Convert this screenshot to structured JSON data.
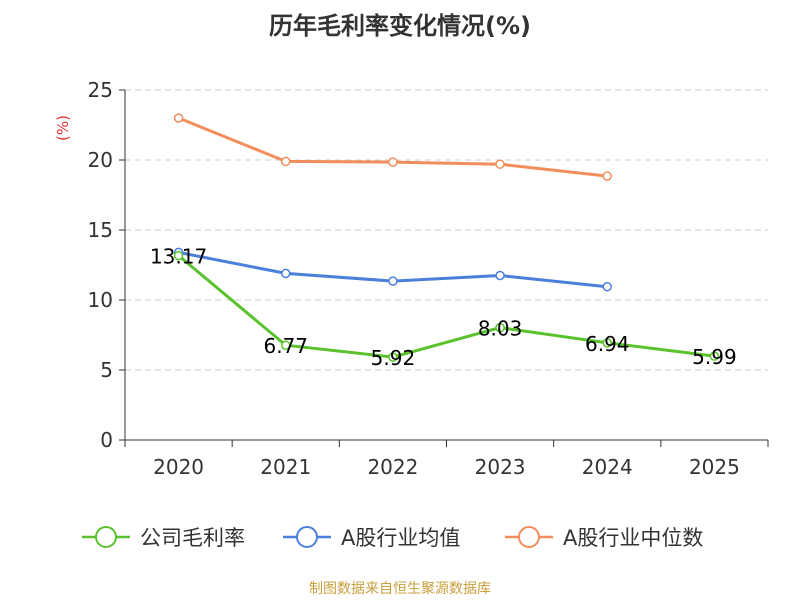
{
  "chart_data": {
    "type": "line",
    "title": "历年毛利率变化情况(%)",
    "ylabel": "(%)",
    "xlabel": "",
    "categories": [
      "2020",
      "2021",
      "2022",
      "2023",
      "2024",
      "2025"
    ],
    "ylim": [
      0,
      25
    ],
    "yticks": [
      0,
      5,
      10,
      15,
      20,
      25
    ],
    "grid": true,
    "legend_position": "bottom",
    "series": [
      {
        "name": "公司毛利率",
        "color": "#5bc22d",
        "values": [
          13.17,
          6.77,
          5.92,
          8.03,
          6.94,
          5.99
        ],
        "labels": [
          "13.17",
          "6.77",
          "5.92",
          "8.03",
          "6.94",
          "5.99"
        ]
      },
      {
        "name": "A股行业均值",
        "color": "#4a7fdc",
        "values": [
          13.4,
          11.9,
          11.35,
          11.75,
          10.95,
          null
        ]
      },
      {
        "name": "A股行业中位数",
        "color": "#f28e5c",
        "values": [
          23.0,
          19.9,
          19.85,
          19.7,
          18.85,
          null
        ]
      }
    ]
  },
  "source": "制图数据来自恒生聚源数据库",
  "colors": {
    "axis": "#333333",
    "grid": "#cccccc",
    "ylabel": "#e03030",
    "text": "#333333"
  }
}
